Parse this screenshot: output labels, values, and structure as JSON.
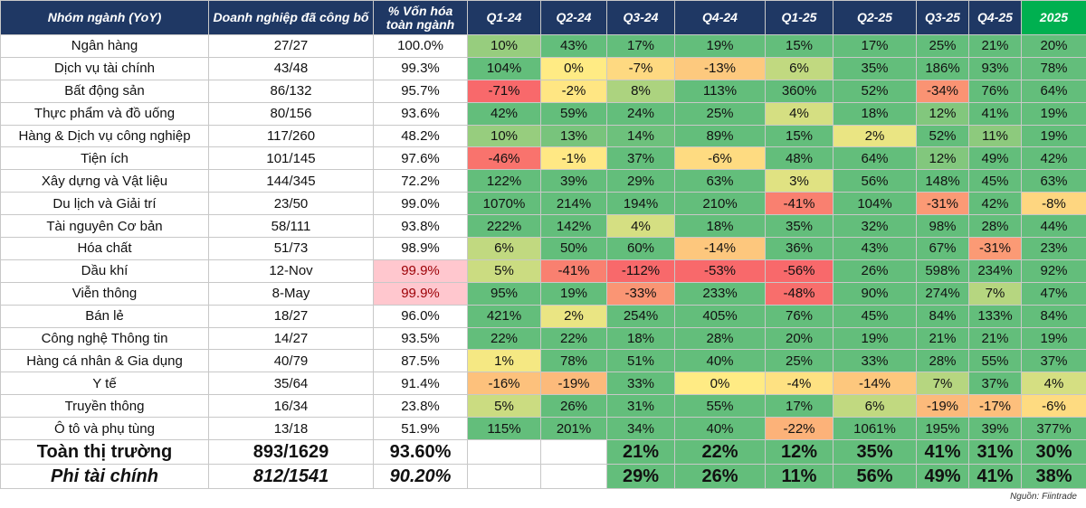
{
  "table": {
    "header": [
      "Nhóm ngành (YoY)",
      "Doanh nghiệp đã công bố",
      "% Vốn hóa toàn ngành",
      "Q1-24",
      "Q2-24",
      "Q3-24",
      "Q4-24",
      "Q1-25",
      "Q2-25",
      "Q3-25",
      "Q4-25",
      "2025"
    ],
    "rows": [
      [
        "Ngân hàng",
        "27/27",
        "100.0%",
        "10%",
        "43%",
        "17%",
        "19%",
        "15%",
        "17%",
        "25%",
        "21%",
        "20%"
      ],
      [
        "Dịch vụ tài chính",
        "43/48",
        "99.3%",
        "104%",
        "0%",
        "-7%",
        "-13%",
        "6%",
        "35%",
        "186%",
        "93%",
        "78%"
      ],
      [
        "Bất động sản",
        "86/132",
        "95.7%",
        "-71%",
        "-2%",
        "8%",
        "113%",
        "360%",
        "52%",
        "-34%",
        "76%",
        "64%"
      ],
      [
        "Thực phẩm và đồ uống",
        "80/156",
        "93.6%",
        "42%",
        "59%",
        "24%",
        "25%",
        "4%",
        "18%",
        "12%",
        "41%",
        "19%"
      ],
      [
        "Hàng & Dịch vụ công nghiệp",
        "117/260",
        "48.2%",
        "10%",
        "13%",
        "14%",
        "89%",
        "15%",
        "2%",
        "52%",
        "11%",
        "19%"
      ],
      [
        "Tiện ích",
        "101/145",
        "97.6%",
        "-46%",
        "-1%",
        "37%",
        "-6%",
        "48%",
        "64%",
        "12%",
        "49%",
        "42%"
      ],
      [
        "Xây dựng và Vật liệu",
        "144/345",
        "72.2%",
        "122%",
        "39%",
        "29%",
        "63%",
        "3%",
        "56%",
        "148%",
        "45%",
        "63%"
      ],
      [
        "Du lịch và Giải trí",
        "23/50",
        "99.0%",
        "1070%",
        "214%",
        "194%",
        "210%",
        "-41%",
        "104%",
        "-31%",
        "42%",
        "-8%"
      ],
      [
        "Tài nguyên Cơ bản",
        "58/111",
        "93.8%",
        "222%",
        "142%",
        "4%",
        "18%",
        "35%",
        "32%",
        "98%",
        "28%",
        "44%"
      ],
      [
        "Hóa chất",
        "51/73",
        "98.9%",
        "6%",
        "50%",
        "60%",
        "-14%",
        "36%",
        "43%",
        "67%",
        "-31%",
        "23%"
      ],
      [
        "Dầu khí",
        "12-Nov",
        "99.9%",
        "5%",
        "-41%",
        "-112%",
        "-53%",
        "-56%",
        "26%",
        "598%",
        "234%",
        "92%"
      ],
      [
        "Viễn thông",
        "8-May",
        "99.9%",
        "95%",
        "19%",
        "-33%",
        "233%",
        "-48%",
        "90%",
        "274%",
        "7%",
        "47%"
      ],
      [
        "Bán lẻ",
        "18/27",
        "96.0%",
        "421%",
        "2%",
        "254%",
        "405%",
        "76%",
        "45%",
        "84%",
        "133%",
        "84%"
      ],
      [
        "Công nghệ Thông tin",
        "14/27",
        "93.5%",
        "22%",
        "22%",
        "18%",
        "28%",
        "20%",
        "19%",
        "21%",
        "21%",
        "19%"
      ],
      [
        "Hàng cá nhân & Gia dụng",
        "40/79",
        "87.5%",
        "1%",
        "78%",
        "51%",
        "40%",
        "25%",
        "33%",
        "28%",
        "55%",
        "37%"
      ],
      [
        "Y tế",
        "35/64",
        "91.4%",
        "-16%",
        "-19%",
        "33%",
        "0%",
        "-4%",
        "-14%",
        "7%",
        "37%",
        "4%"
      ],
      [
        "Truyền thông",
        "16/34",
        "23.8%",
        "5%",
        "26%",
        "31%",
        "55%",
        "17%",
        "6%",
        "-19%",
        "-17%",
        "-6%"
      ],
      [
        "Ô tô và phụ tùng",
        "13/18",
        "51.9%",
        "115%",
        "201%",
        "34%",
        "40%",
        "-22%",
        "1061%",
        "195%",
        "39%",
        "377%"
      ]
    ],
    "summary": [
      [
        "Toàn thị trường",
        "893/1629",
        "93.60%",
        null,
        null,
        "21%",
        "22%",
        "12%",
        "35%",
        "41%",
        "31%",
        "30%"
      ],
      [
        "Phi tài chính",
        "812/1541",
        "90.20%",
        null,
        null,
        "29%",
        "26%",
        "11%",
        "56%",
        "49%",
        "41%",
        "38%"
      ]
    ],
    "source": "Nguồn: Fiintrade"
  }
}
